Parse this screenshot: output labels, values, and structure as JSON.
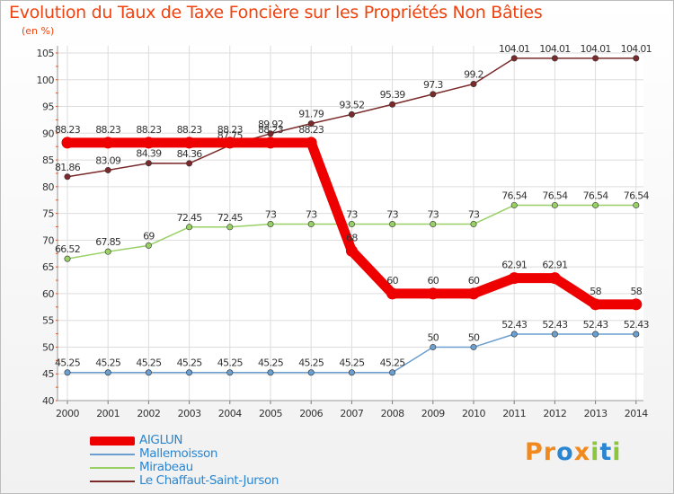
{
  "chart_data": {
    "type": "line",
    "title": "Evolution du Taux de Taxe Foncière sur les Propriétés Non Bâties",
    "subtitle": "(en %)",
    "xlabel": "",
    "ylabel": "(en %)",
    "categories": [
      "2000",
      "2001",
      "2002",
      "2003",
      "2004",
      "2005",
      "2006",
      "2007",
      "2008",
      "2009",
      "2010",
      "2011",
      "2012",
      "2013",
      "2014"
    ],
    "ylim": [
      40,
      105
    ],
    "yticks": [
      40,
      45,
      50,
      55,
      60,
      65,
      70,
      75,
      80,
      85,
      90,
      95,
      100,
      105
    ],
    "grid": true,
    "series": [
      {
        "name": "AIGLUN",
        "color": "#ee0000",
        "values": [
          88.23,
          88.23,
          88.23,
          88.23,
          88.23,
          88.23,
          88.23,
          68,
          60,
          60,
          60,
          62.91,
          62.91,
          58,
          58
        ],
        "labels": [
          "88.23",
          "88.23",
          "88.23",
          "88.23",
          "88.23",
          "88.23",
          "88.23",
          "68",
          "60",
          "60",
          "60",
          "62.91",
          "62.91",
          "58",
          "58"
        ]
      },
      {
        "name": "Mallemoisson",
        "color": "#6a9fd0",
        "values": [
          45.25,
          45.25,
          45.25,
          45.25,
          45.25,
          45.25,
          45.25,
          45.25,
          45.25,
          50,
          50,
          52.43,
          52.43,
          52.43,
          52.43
        ],
        "labels": [
          "45.25",
          "45.25",
          "45.25",
          "45.25",
          "45.25",
          "45.25",
          "45.25",
          "45.25",
          "45.25",
          "50",
          "50",
          "52.43",
          "52.43",
          "52.43",
          "52.43"
        ]
      },
      {
        "name": "Mirabeau",
        "color": "#99d066",
        "values": [
          66.52,
          67.85,
          69,
          72.45,
          72.45,
          73,
          73,
          73,
          73,
          73,
          73,
          76.54,
          76.54,
          76.54,
          76.54
        ],
        "labels": [
          "66.52",
          "67.85",
          "69",
          "72.45",
          "72.45",
          "73",
          "73",
          "73",
          "73",
          "73",
          "73",
          "76.54",
          "76.54",
          "76.54",
          "76.54"
        ]
      },
      {
        "name": "Le Chaffaut-Saint-Jurson",
        "color": "#7a2a2a",
        "values": [
          81.86,
          83.09,
          84.39,
          84.36,
          87.75,
          89.92,
          91.79,
          93.52,
          95.39,
          97.3,
          99.2,
          104.01,
          104.01,
          104.01,
          104.01
        ],
        "labels": [
          "81.86",
          "83.09",
          "84.39",
          "84.36",
          "87.75",
          "89.92",
          "91.79",
          "93.52",
          "95.39",
          "97.3",
          "99.2",
          "104.01",
          "104.01",
          "104.01",
          "104.01"
        ]
      }
    ]
  },
  "logo": {
    "text": "Proxiti",
    "letters": [
      "P",
      "r",
      "o",
      "x",
      "i",
      "t",
      "i"
    ],
    "colors": [
      "#f08a1e",
      "#f08a1e",
      "#2a86d1",
      "#f08a1e",
      "#8cc63f",
      "#2a86d1",
      "#8cc63f"
    ]
  }
}
